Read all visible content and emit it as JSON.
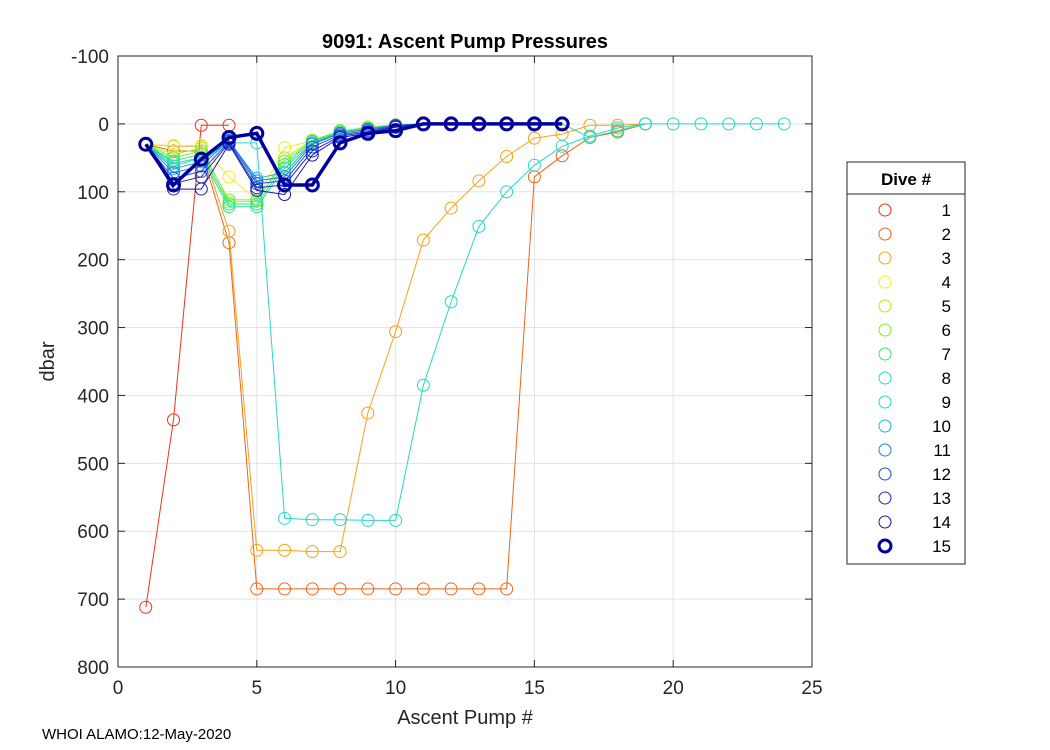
{
  "footer": "WHOI ALAMO:12-May-2020",
  "chart_data": {
    "type": "line",
    "title": "9091: Ascent Pump Pressures",
    "xlabel": "Ascent Pump #",
    "ylabel": "dbar",
    "xlim": [
      0,
      25
    ],
    "ylim": [
      -100,
      800
    ],
    "y_reversed": true,
    "grid": true,
    "xticks": [
      0,
      5,
      10,
      15,
      20,
      25
    ],
    "yticks": [
      -100,
      0,
      100,
      200,
      300,
      400,
      500,
      600,
      700,
      800
    ],
    "legend": {
      "title": "Dive #",
      "position": "outside-right"
    },
    "series": [
      {
        "name": "1",
        "color": "#e8361e",
        "x": [
          1,
          2,
          3,
          4
        ],
        "y": [
          712,
          436,
          2,
          2
        ]
      },
      {
        "name": "2",
        "color": "#ee6418",
        "x": [
          1,
          2,
          3,
          4,
          5,
          6,
          7,
          8,
          9,
          10,
          11,
          12,
          13,
          14,
          15,
          16,
          17,
          18,
          19
        ],
        "y": [
          30,
          40,
          40,
          175,
          685,
          685,
          685,
          685,
          685,
          685,
          685,
          685,
          685,
          685,
          78,
          47,
          20,
          12,
          0
        ]
      },
      {
        "name": "3",
        "color": "#f6a21a",
        "x": [
          1,
          2,
          3,
          4,
          5,
          6,
          7,
          8,
          9,
          10,
          11,
          12,
          13,
          14,
          15,
          16,
          17,
          18,
          19
        ],
        "y": [
          30,
          33,
          33,
          158,
          628,
          628,
          630,
          630,
          426,
          306,
          171,
          124,
          84,
          48,
          21,
          15,
          2,
          2,
          0
        ]
      },
      {
        "name": "4",
        "color": "#f4ee18",
        "x": [
          1,
          2,
          3,
          4,
          5,
          6,
          7,
          8,
          9,
          10,
          11,
          12
        ],
        "y": [
          30,
          32,
          32,
          78,
          112,
          35,
          25,
          12,
          4,
          1,
          0,
          0
        ]
      },
      {
        "name": "5",
        "color": "#aef020",
        "x": [
          1,
          2,
          3,
          4,
          5,
          6,
          7,
          8,
          9,
          10,
          11,
          12
        ],
        "y": [
          30,
          45,
          36,
          115,
          114,
          50,
          24,
          10,
          6,
          2,
          0,
          0
        ]
      },
      {
        "name": "6",
        "color": "#74ee36",
        "x": [
          1,
          2,
          3,
          4,
          5,
          6,
          7,
          8,
          9,
          10,
          11,
          12
        ],
        "y": [
          30,
          50,
          40,
          112,
          112,
          55,
          25,
          10,
          6,
          2,
          0,
          0
        ]
      },
      {
        "name": "7",
        "color": "#36e870",
        "x": [
          1,
          2,
          3,
          4,
          5,
          6,
          7,
          8,
          9,
          10,
          11,
          12
        ],
        "y": [
          30,
          55,
          44,
          118,
          118,
          60,
          26,
          12,
          6,
          2,
          0,
          0
        ]
      },
      {
        "name": "8",
        "color": "#28e2a0",
        "x": [
          1,
          2,
          3,
          4,
          5,
          6,
          7,
          8,
          9,
          10,
          11,
          12,
          13,
          14,
          15,
          16,
          17,
          18,
          19
        ],
        "y": [
          30,
          58,
          50,
          122,
          122,
          65,
          28,
          12,
          6,
          2,
          0,
          0,
          0,
          0,
          0,
          0,
          20,
          10,
          0
        ]
      },
      {
        "name": "9",
        "color": "#26d8c8",
        "x": [
          1,
          2,
          3,
          4,
          5,
          6,
          7,
          8,
          9,
          10,
          11,
          12,
          13,
          14,
          15,
          16,
          17,
          18,
          19,
          20,
          21,
          22,
          23,
          24
        ],
        "y": [
          30,
          62,
          50,
          28,
          28,
          581,
          583,
          583,
          584,
          584,
          385,
          262,
          151,
          100,
          61,
          33,
          18,
          6,
          0,
          0,
          0,
          0,
          0,
          0
        ]
      },
      {
        "name": "10",
        "color": "#22b0e0",
        "x": [
          1,
          2,
          3,
          4,
          5,
          6,
          7,
          8,
          9,
          10,
          11
        ],
        "y": [
          30,
          66,
          56,
          25,
          80,
          72,
          28,
          14,
          8,
          2,
          0
        ]
      },
      {
        "name": "11",
        "color": "#2080dc",
        "x": [
          1,
          2,
          3,
          4,
          5,
          6,
          7,
          8,
          9,
          10,
          11
        ],
        "y": [
          30,
          72,
          62,
          24,
          84,
          78,
          30,
          14,
          8,
          2,
          0
        ]
      },
      {
        "name": "12",
        "color": "#1c52d6",
        "x": [
          1,
          2,
          3,
          4,
          5,
          6,
          7,
          8,
          9,
          10,
          11
        ],
        "y": [
          30,
          80,
          70,
          26,
          88,
          84,
          34,
          16,
          10,
          3,
          0
        ]
      },
      {
        "name": "13",
        "color": "#1a2ec8",
        "x": [
          1,
          2,
          3,
          4,
          5,
          6,
          7,
          8,
          9,
          10,
          11
        ],
        "y": [
          30,
          88,
          78,
          28,
          94,
          90,
          40,
          18,
          12,
          4,
          0
        ]
      },
      {
        "name": "14",
        "color": "#1818b4",
        "x": [
          1,
          2,
          3,
          4,
          5,
          6,
          7,
          8,
          9,
          10,
          11
        ],
        "y": [
          30,
          96,
          96,
          30,
          98,
          104,
          46,
          20,
          14,
          5,
          0
        ]
      },
      {
        "name": "15",
        "color": "#00009c",
        "bold": true,
        "x": [
          1,
          2,
          3,
          4,
          5,
          6,
          7,
          8,
          9,
          10,
          11,
          12,
          13,
          14,
          15,
          16
        ],
        "y": [
          30,
          90,
          52,
          20,
          14,
          90,
          90,
          28,
          14,
          10,
          0,
          0,
          0,
          0,
          0,
          0
        ]
      }
    ]
  }
}
